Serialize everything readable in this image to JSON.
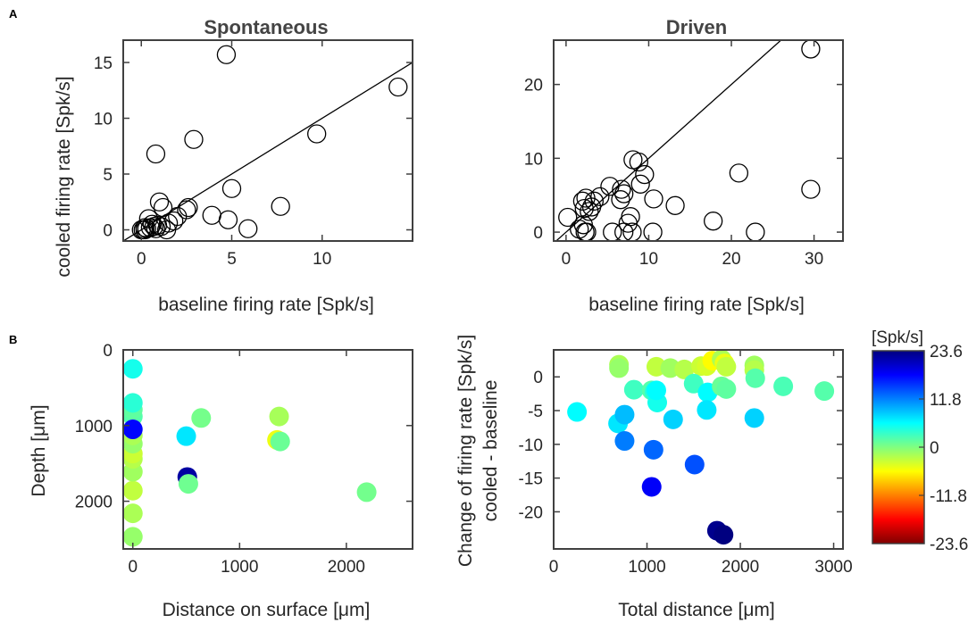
{
  "panel_labels": {
    "a": "A",
    "b": "B"
  },
  "colorbar": {
    "title": "[Spk/s]",
    "min": -23.6,
    "max": 23.6,
    "tick_values": [
      23.6,
      11.8,
      0,
      -11.8,
      -23.6
    ],
    "tick_labels": [
      "23.6",
      "11.8",
      "0",
      "-11.8",
      "-23.6"
    ],
    "colors": [
      "#800000",
      "#ff0000",
      "#ff8000",
      "#ffff00",
      "#80ff80",
      "#00ffff",
      "#0080ff",
      "#0000ff",
      "#000080"
    ]
  },
  "chart_data": [
    {
      "id": "spontaneous",
      "type": "scatter",
      "title": "Spontaneous",
      "xlabel": "baseline firing rate [Spk/s]",
      "ylabel": "cooled firing rate [Spk/s]",
      "xlim": [
        -1,
        15
      ],
      "ylim": [
        -1,
        17
      ],
      "xticks": [
        0,
        5,
        10
      ],
      "yticks": [
        0,
        5,
        10,
        15
      ],
      "xtick_labels": [
        "0",
        "5",
        "10"
      ],
      "ytick_labels": [
        "0",
        "5",
        "10",
        "15"
      ],
      "identity_line": true,
      "marker": "open-circle",
      "x": [
        4.7,
        14.2,
        9.7,
        0.8,
        2.9,
        5.0,
        7.7,
        1.0,
        1.2,
        2.6,
        2.5,
        3.9,
        4.8,
        5.9,
        1.8,
        2.0,
        1.5,
        0.4,
        0.6,
        0.9,
        1.1,
        0.0,
        0.2,
        0.3,
        0.5,
        0.1,
        0.7,
        0.8,
        1.4,
        0.2
      ],
      "y": [
        15.7,
        12.8,
        8.6,
        6.8,
        8.1,
        3.7,
        2.1,
        2.5,
        2.0,
        2.0,
        1.8,
        1.3,
        0.9,
        0.1,
        0.8,
        1.2,
        0.6,
        1.0,
        0.5,
        0.4,
        0.3,
        0.0,
        0.0,
        0.1,
        0.2,
        0.0,
        0.3,
        0.1,
        0.0,
        0.2
      ]
    },
    {
      "id": "driven",
      "type": "scatter",
      "title": "Driven",
      "xlabel": "baseline firing rate [Spk/s]",
      "ylabel": "",
      "xlim": [
        -1.5,
        33.5
      ],
      "ylim": [
        -1.2,
        26
      ],
      "xticks": [
        0,
        10,
        20,
        30
      ],
      "yticks": [
        0,
        10,
        20
      ],
      "xtick_labels": [
        "0",
        "10",
        "20",
        "30"
      ],
      "ytick_labels": [
        "0",
        "10",
        "20"
      ],
      "identity_line": true,
      "marker": "open-circle",
      "x": [
        29.6,
        29.6,
        20.9,
        22.9,
        17.8,
        13.2,
        10.6,
        10.5,
        8.1,
        8.8,
        9.5,
        9.0,
        6.7,
        7.0,
        7.8,
        7.5,
        5.3,
        4.1,
        3.4,
        3.1,
        2.8,
        2.4,
        2.0,
        2.1,
        0.2,
        1.6,
        2.3,
        2.5,
        5.6,
        7.0,
        8.0,
        6.6,
        2.2
      ],
      "y": [
        24.8,
        5.8,
        8.0,
        0.0,
        1.5,
        3.6,
        4.5,
        0.0,
        9.8,
        9.5,
        7.8,
        6.5,
        5.8,
        5.2,
        2.1,
        1.2,
        6.2,
        4.8,
        4.2,
        3.4,
        2.8,
        4.6,
        4.2,
        1.0,
        2.0,
        0.4,
        0.0,
        0.0,
        0.0,
        0.0,
        0.0,
        4.4,
        3.2
      ]
    },
    {
      "id": "depth-vs-surface",
      "type": "scatter",
      "title": "",
      "xlabel": "Distance on surface [μm]",
      "ylabel": "Depth [μm]",
      "xlim": [
        -90,
        2620
      ],
      "ylim": [
        2630,
        0
      ],
      "xticks": [
        0,
        1000,
        2000
      ],
      "yticks": [
        0,
        1000,
        2000
      ],
      "xtick_labels": [
        "0",
        "1000",
        "2000"
      ],
      "ytick_labels": [
        "0",
        "1000",
        "2000"
      ],
      "marker": "filled-circle",
      "x": [
        0,
        0,
        0,
        0,
        0,
        0,
        0,
        0,
        0,
        0,
        0,
        0,
        0,
        500,
        640,
        1370,
        1350,
        1380,
        510,
        520,
        2190
      ],
      "y": [
        2470,
        2160,
        1860,
        1610,
        1440,
        1370,
        1240,
        1130,
        880,
        790,
        700,
        250,
        1050,
        1140,
        900,
        880,
        1190,
        1210,
        1680,
        1770,
        1880
      ],
      "color_values": [
        -1,
        -2,
        -3,
        -1.5,
        -2.5,
        -3.5,
        -1,
        -2,
        2,
        1.5,
        4,
        5,
        17.5,
        7,
        0.5,
        -1.8,
        -5,
        1,
        22,
        0.8,
        0.6
      ]
    },
    {
      "id": "change-vs-total",
      "type": "scatter",
      "title": "",
      "xlabel": "Total distance [μm]",
      "ylabel": "Change of firing rate [Spk/s]\ncooled - baseline",
      "xlim": [
        0,
        3100
      ],
      "ylim": [
        -25.5,
        4
      ],
      "xticks": [
        0,
        1000,
        2000,
        3000
      ],
      "yticks": [
        0,
        -5,
        -10,
        -15,
        -20
      ],
      "xtick_labels": [
        "0",
        "1000",
        "2000",
        "3000"
      ],
      "ytick_labels": [
        "0",
        "-5",
        "-10",
        "-15",
        "-20"
      ],
      "marker": "filled-circle",
      "x": [
        700,
        700,
        1100,
        1250,
        1400,
        1580,
        1640,
        1700,
        1800,
        1830,
        1850,
        2150,
        2150,
        860,
        1050,
        1080,
        1110,
        1500,
        1650,
        1800,
        1850,
        2160,
        2460,
        2900,
        250,
        690,
        760,
        1100,
        1280,
        1640,
        2150,
        760,
        1070,
        1510,
        1050,
        1750,
        1820
      ],
      "y": [
        1.8,
        1.3,
        1.5,
        1.3,
        1.1,
        1.6,
        1.6,
        2.4,
        2.6,
        2.0,
        1.5,
        1.7,
        1.0,
        -1.9,
        -2.0,
        -2.2,
        -3.8,
        -1.0,
        -2.3,
        -1.4,
        -1.8,
        -0.2,
        -1.4,
        -2.1,
        -5.2,
        -6.9,
        -5.6,
        -2.0,
        -6.3,
        -4.9,
        -6.1,
        -9.5,
        -10.8,
        -13.0,
        -16.3,
        -22.8,
        -23.4
      ],
      "color_values": [
        -2,
        -1,
        -3,
        -1.5,
        -2.5,
        -3.5,
        -4,
        -6,
        -2,
        -5,
        -3,
        -1.5,
        -2.5,
        3,
        2,
        4,
        5,
        3,
        6,
        1,
        1.5,
        2,
        2.5,
        2,
        6,
        7,
        9,
        6,
        8,
        7,
        8,
        12,
        13,
        14,
        18,
        23,
        23.6
      ]
    }
  ]
}
